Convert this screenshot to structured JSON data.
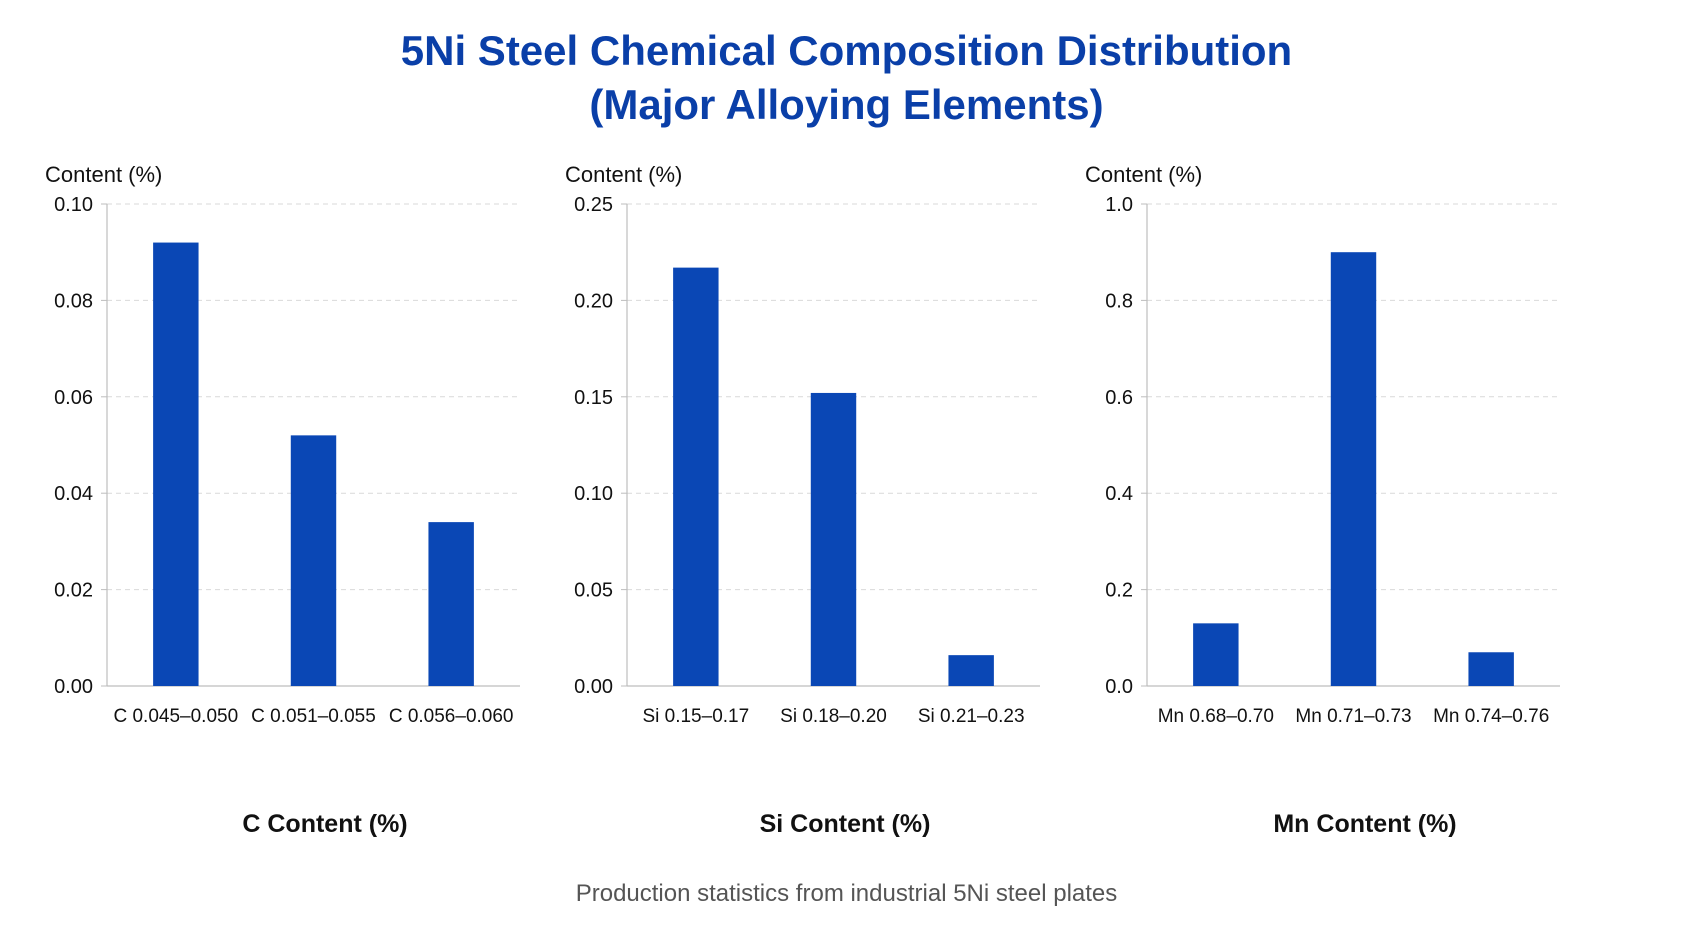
{
  "title_line1": "5Ni Steel Chemical Composition Distribution",
  "title_line2": "(Major Alloying Elements)",
  "footer": "Production statistics from industrial 5Ni steel plates",
  "colors": {
    "bar": "#0a47b5",
    "title": "#0a3fa8",
    "grid": "#d9d9d9",
    "axis": "#bdbdbd"
  },
  "chart_data": [
    {
      "type": "bar",
      "ylabel": "Content (%)",
      "xlabel": "C Content (%)",
      "categories": [
        "C 0.045–0.050",
        "C 0.051–0.055",
        "C 0.056–0.060"
      ],
      "values": [
        0.092,
        0.052,
        0.034
      ],
      "ylim": [
        0,
        0.1
      ],
      "yticks": [
        "0.00",
        "0.02",
        "0.04",
        "0.06",
        "0.08",
        "0.10"
      ],
      "grid": true
    },
    {
      "type": "bar",
      "ylabel": "Content (%)",
      "xlabel": "Si Content (%)",
      "categories": [
        "Si 0.15–0.17",
        "Si 0.18–0.20",
        "Si 0.21–0.23"
      ],
      "values": [
        0.217,
        0.152,
        0.016
      ],
      "ylim": [
        0,
        0.25
      ],
      "yticks": [
        "0.00",
        "0.05",
        "0.10",
        "0.15",
        "0.20",
        "0.25"
      ],
      "grid": true
    },
    {
      "type": "bar",
      "ylabel": "Content (%)",
      "xlabel": "Mn Content (%)",
      "categories": [
        "Mn 0.68–0.70",
        "Mn 0.71–0.73",
        "Mn 0.74–0.76"
      ],
      "values": [
        0.13,
        0.9,
        0.07
      ],
      "ylim": [
        0,
        1.0
      ],
      "yticks": [
        "0.0",
        "0.2",
        "0.4",
        "0.6",
        "0.8",
        "1.0"
      ],
      "grid": true
    }
  ]
}
